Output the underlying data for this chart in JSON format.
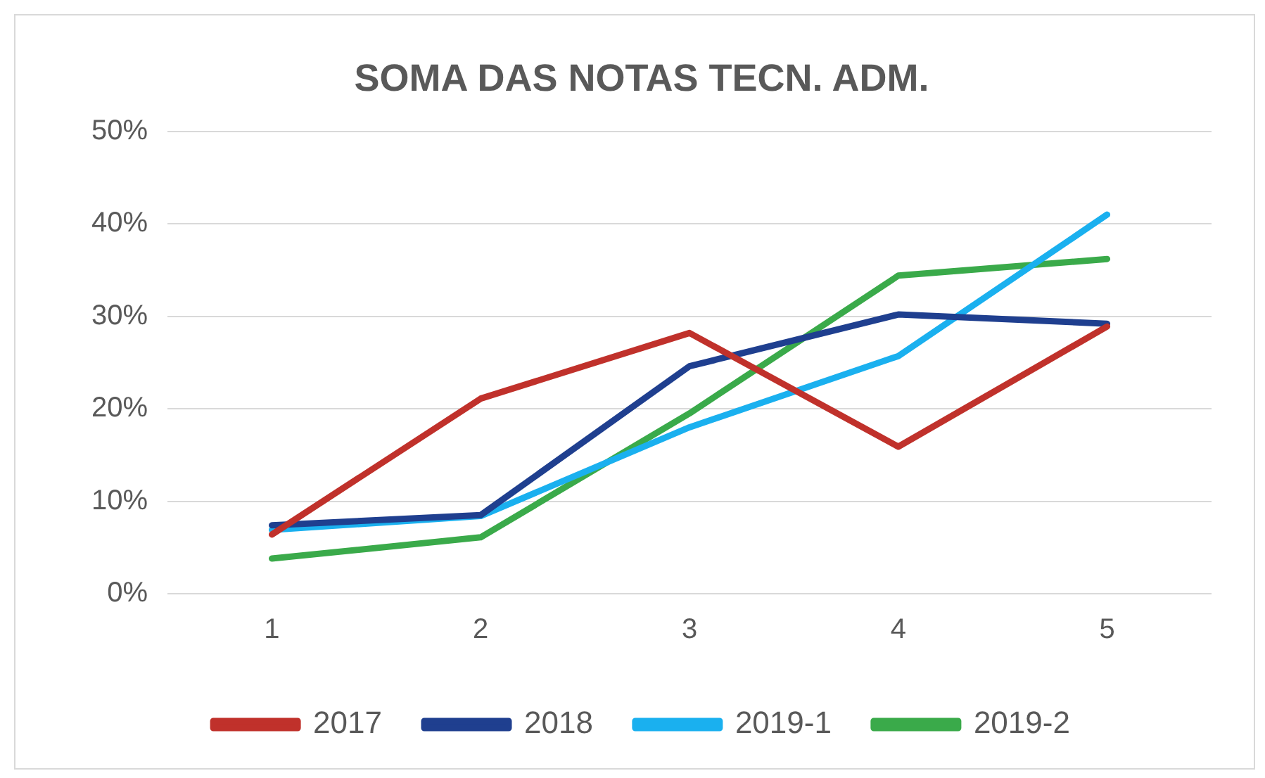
{
  "chart_data": {
    "type": "line",
    "title": "SOMA DAS NOTAS TECN. ADM.",
    "categories": [
      "1",
      "2",
      "3",
      "4",
      "5"
    ],
    "series": [
      {
        "name": "2017",
        "color": "#c0312b",
        "values": [
          6.4,
          21.1,
          28.2,
          15.9,
          28.9
        ]
      },
      {
        "name": "2018",
        "color": "#1f3f8f",
        "values": [
          7.4,
          8.5,
          24.6,
          30.2,
          29.2
        ]
      },
      {
        "name": "2019-1",
        "color": "#1ab0ef",
        "values": [
          6.9,
          8.4,
          18.0,
          25.7,
          41.0
        ]
      },
      {
        "name": "2019-2",
        "color": "#3aaa4a",
        "values": [
          3.8,
          6.1,
          19.5,
          34.4,
          36.2
        ]
      }
    ],
    "ylim": [
      0,
      50
    ],
    "yticks": [
      {
        "value": 0,
        "label": "0%"
      },
      {
        "value": 10,
        "label": "10%"
      },
      {
        "value": 20,
        "label": "20%"
      },
      {
        "value": 30,
        "label": "30%"
      },
      {
        "value": 40,
        "label": "40%"
      },
      {
        "value": 50,
        "label": "50%"
      }
    ],
    "grid": "y",
    "legend": "bottom",
    "marker": "none",
    "line_style": "solid"
  }
}
